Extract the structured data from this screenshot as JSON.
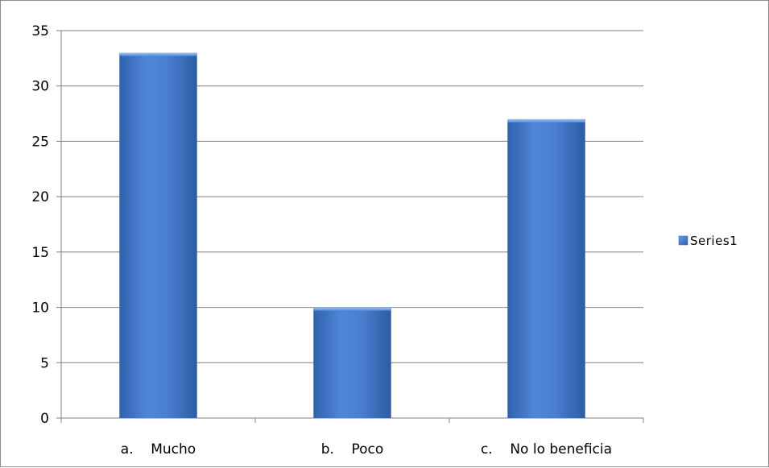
{
  "chart_data": {
    "type": "bar",
    "categories": [
      "a.    Mucho",
      "b.    Poco",
      "c.    No lo beneficia"
    ],
    "series": [
      {
        "name": "Series1",
        "values": [
          33,
          10,
          27
        ]
      }
    ],
    "ylim": [
      0,
      35
    ],
    "yticks": [
      0,
      5,
      10,
      15,
      20,
      25,
      30,
      35
    ],
    "grid": true,
    "legend": "right",
    "colors": {
      "bar_top": "#6a9ee8",
      "bar_mid": "#4a7fd0",
      "bar_bottom": "#2e5fa8",
      "grid": "#808080"
    }
  }
}
